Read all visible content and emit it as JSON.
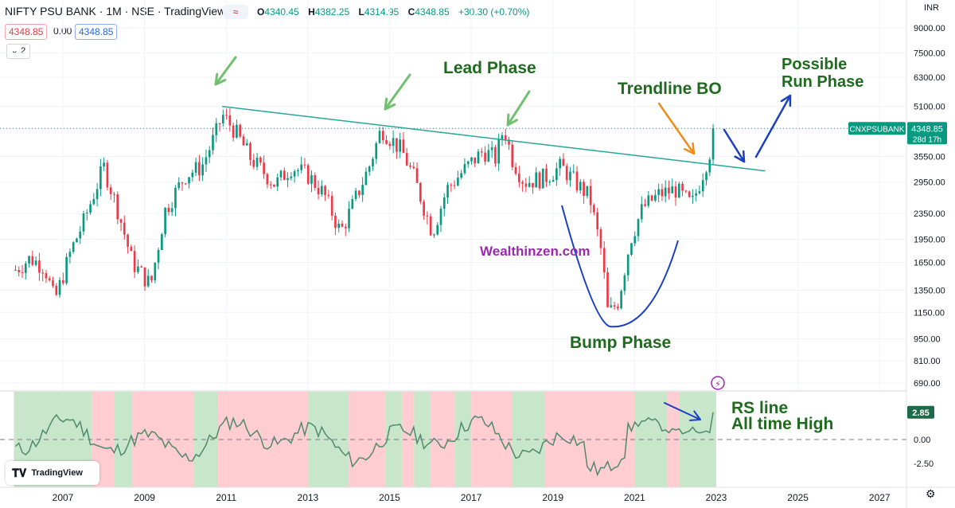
{
  "header": {
    "title": "NIFTY PSU BANK · 1M · NSE · TradingView",
    "ohlc": [
      {
        "k": "O",
        "v": "4340.45"
      },
      {
        "k": "H",
        "v": "4382.25"
      },
      {
        "k": "L",
        "v": "4314.95"
      },
      {
        "k": "C",
        "v": "4348.85"
      }
    ],
    "change": "+30.30 (+0.70%)",
    "compare_glyph": "≈",
    "sell_price": "4348.85",
    "spread": "0.00",
    "buy_price": "4348.85",
    "indicator_count": "2",
    "currency": "INR"
  },
  "colors": {
    "up": "#089981",
    "down": "#f23645",
    "trendline": "#26a69a",
    "annotation_green": "#1e6b1e",
    "arrow_green": "#6fc16f",
    "arrow_blue": "#1a3fc4",
    "arrow_orange": "#f08c1a",
    "watermark": "#9c27b0",
    "rs_line": "#4f8a6e",
    "band_green": "#c8e6c9",
    "band_red": "#ffcdd2"
  },
  "chart_data": [
    {
      "type": "candlestick",
      "title": "NIFTY PSU BANK · 1M · NSE",
      "symbol_label": "CNXPSUBANK",
      "last_price": 4348.85,
      "countdown": "28d 17h",
      "scale": "log",
      "ylim": [
        640,
        9800
      ],
      "y_ticks": [
        9000,
        7500,
        6300,
        5100,
        4350,
        3550,
        2950,
        2350,
        1950,
        1650,
        1350,
        1150,
        950,
        810,
        690
      ],
      "y_tick_labels": [
        "9000.00",
        "7500.00",
        "6300.00",
        "5100.00",
        "4350.00",
        "3550.00",
        "2950.00",
        "2350.00",
        "1950.00",
        "1650.00",
        "1350.00",
        "1150.00",
        "950.00",
        "810.00",
        "690.00"
      ],
      "x_range": [
        2005.8,
        2028.6
      ],
      "x_ticks": [
        2007,
        2009,
        2011,
        2013,
        2015,
        2017,
        2019,
        2021,
        2023,
        2025,
        2027
      ],
      "x_tick_labels": [
        "2007",
        "2009",
        "2011",
        "2013",
        "2015",
        "2017",
        "2019",
        "2021",
        "2023",
        "2025",
        "2027"
      ],
      "anchors": {
        "x": [
          2005.8,
          2006.2,
          2006.55,
          2006.8,
          2007.2,
          2007.5,
          2008.0,
          2008.35,
          2008.7,
          2009.15,
          2009.5,
          2010.0,
          2010.4,
          2010.75,
          2010.9,
          2011.2,
          2011.6,
          2012.2,
          2012.6,
          2013.0,
          2013.4,
          2013.8,
          2014.1,
          2014.5,
          2014.8,
          2015.3,
          2015.6,
          2016.05,
          2016.4,
          2016.9,
          2017.3,
          2017.6,
          2017.8,
          2018.0,
          2018.3,
          2018.8,
          2019.2,
          2019.6,
          2019.9,
          2020.2,
          2020.35,
          2020.6,
          2020.9,
          2021.2,
          2021.6,
          2022.0,
          2022.4,
          2022.6,
          2022.85,
          2023.0
        ],
        "y": [
          1550,
          1700,
          1600,
          1250,
          1800,
          2200,
          3300,
          2400,
          1650,
          1400,
          2400,
          3100,
          3300,
          4200,
          4800,
          4300,
          3500,
          2900,
          3300,
          3100,
          2700,
          2050,
          2500,
          3300,
          4350,
          3700,
          3050,
          2050,
          2800,
          3300,
          3700,
          3500,
          4400,
          3500,
          2950,
          3050,
          3300,
          2900,
          2650,
          1750,
          1130,
          1250,
          1950,
          2450,
          2700,
          2800,
          2500,
          2950,
          3700,
          4350
        ]
      },
      "annotations": [
        "Lead Phase",
        "Trendline BO",
        "Possible Run Phase",
        "Bump Phase",
        "Wealthinzen.com"
      ],
      "trendline": [
        {
          "x": 2010.9,
          "y": 5100
        },
        {
          "x": 2024.2,
          "y": 3200
        }
      ]
    },
    {
      "type": "line",
      "title": "",
      "last_value": 2.85,
      "ylim": [
        -4.5,
        5.5
      ],
      "y_ticks": [
        0,
        -2.5
      ],
      "y_tick_labels": [
        "0.00",
        "-2.50"
      ],
      "zero_line": 0,
      "x_range": [
        2005.8,
        2028.6
      ],
      "annotations": [
        "RS line",
        "All time High"
      ],
      "bands": [
        {
          "from": 2005.8,
          "to": 2007.7,
          "sign": "pos"
        },
        {
          "from": 2007.7,
          "to": 2008.25,
          "sign": "neg"
        },
        {
          "from": 2008.25,
          "to": 2008.7,
          "sign": "pos"
        },
        {
          "from": 2008.7,
          "to": 2010.2,
          "sign": "neg"
        },
        {
          "from": 2010.2,
          "to": 2010.8,
          "sign": "pos"
        },
        {
          "from": 2010.8,
          "to": 2013.0,
          "sign": "neg"
        },
        {
          "from": 2013.0,
          "to": 2014.0,
          "sign": "pos"
        },
        {
          "from": 2014.0,
          "to": 2014.9,
          "sign": "neg"
        },
        {
          "from": 2014.9,
          "to": 2015.3,
          "sign": "pos"
        },
        {
          "from": 2015.3,
          "to": 2015.6,
          "sign": "neg"
        },
        {
          "from": 2015.6,
          "to": 2016.0,
          "sign": "pos"
        },
        {
          "from": 2016.0,
          "to": 2016.6,
          "sign": "neg"
        },
        {
          "from": 2016.6,
          "to": 2017.0,
          "sign": "pos"
        },
        {
          "from": 2017.0,
          "to": 2018.0,
          "sign": "neg"
        },
        {
          "from": 2018.0,
          "to": 2018.8,
          "sign": "pos"
        },
        {
          "from": 2018.8,
          "to": 2021.0,
          "sign": "neg"
        },
        {
          "from": 2021.0,
          "to": 2021.8,
          "sign": "pos"
        },
        {
          "from": 2021.8,
          "to": 2022.1,
          "sign": "neg"
        },
        {
          "from": 2022.1,
          "to": 2023.0,
          "sign": "pos"
        }
      ]
    }
  ],
  "watermark": "TradingView"
}
